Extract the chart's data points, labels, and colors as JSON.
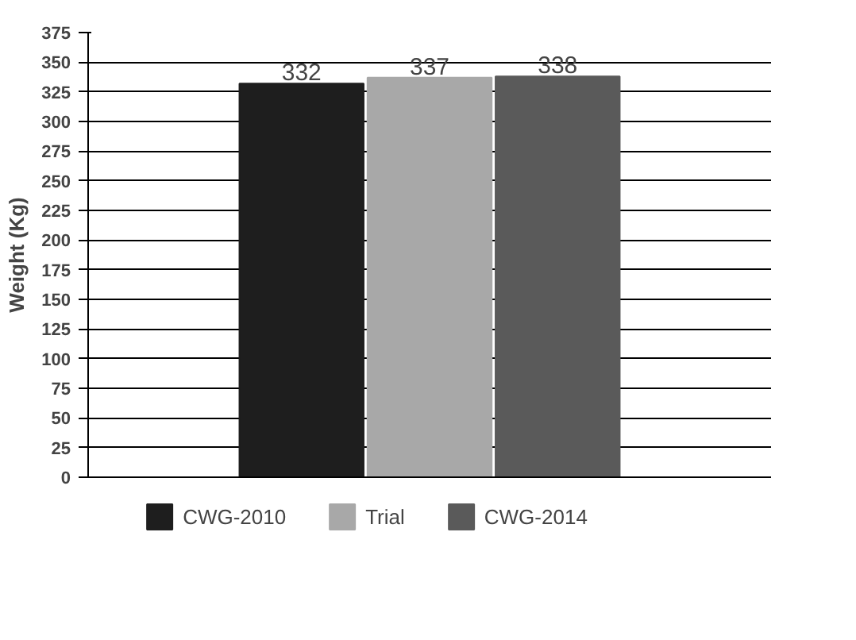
{
  "chart_data": {
    "type": "bar",
    "ylabel": "Weight (Kg)",
    "categories": [
      null
    ],
    "series": [
      {
        "name": "CWG-2010",
        "color": "#1e1e1e",
        "values": [
          332
        ]
      },
      {
        "name": "Trial",
        "color": "#a8a8a8",
        "values": [
          337
        ]
      },
      {
        "name": "CWG-2014",
        "color": "#5a5a5a",
        "values": [
          338
        ]
      }
    ],
    "ylim": [
      0,
      375
    ],
    "yticks": [
      0,
      25,
      50,
      75,
      100,
      125,
      150,
      175,
      200,
      225,
      250,
      275,
      300,
      325,
      350,
      375
    ],
    "grid": "y",
    "legend": "bottom",
    "data_labels": true
  }
}
